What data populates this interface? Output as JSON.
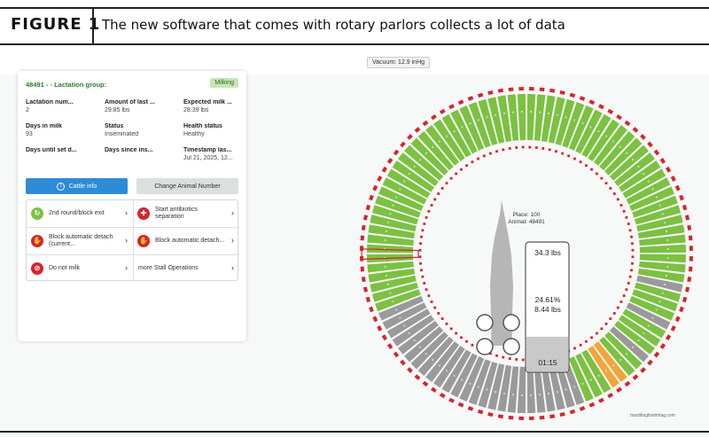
{
  "figure": {
    "number": "FIGURE 1",
    "caption": "The new software that comes with rotary parlors collects a lot of data"
  },
  "vacuum": "Vacuum: 12.9 inHg",
  "card": {
    "title": "48491 - - Lactation group:",
    "status_badge": "Milking",
    "fields": [
      {
        "label": "Lactation num...",
        "value": "2"
      },
      {
        "label": "Amount of last ...",
        "value": "29.85 lbs"
      },
      {
        "label": "Expected milk ...",
        "value": "28.39 lbs"
      },
      {
        "label": "Days in milk",
        "value": "93"
      },
      {
        "label": "Status",
        "value": "Inseminated"
      },
      {
        "label": "Health status",
        "value": "Healthy"
      },
      {
        "label": "Days until set d...",
        "value": ""
      },
      {
        "label": "Days since ins...",
        "value": ""
      },
      {
        "label": "Timestamp las...",
        "value": "Jul 21, 2025, 12..."
      }
    ],
    "cattle_info_label": "Cattle info",
    "change_animal_label": "Change Animal Number",
    "operations": [
      {
        "label": "2nd round/block exit",
        "icon": "refresh-icon",
        "color": "#7cc142"
      },
      {
        "label": "Start antibiotics separation",
        "icon": "antibiotics-icon",
        "color": "#d9232d"
      },
      {
        "label": "Block automatic detach (current...",
        "icon": "hand-block-icon",
        "color": "#d9232d"
      },
      {
        "label": "Block automatic detach...",
        "icon": "hand-block-icon",
        "color": "#d9232d"
      },
      {
        "label": "Do not milk",
        "icon": "no-milk-icon",
        "color": "#d9232d"
      },
      {
        "label": "more Stall Operations",
        "icon": "",
        "color": ""
      }
    ]
  },
  "wheel": {
    "place_label": "Place: 100",
    "animal_label": "Animal: 48491",
    "amount": "34.3 lbs",
    "percent": "24.61%",
    "current": "8.44 lbs",
    "timer": "01:15",
    "progress_fraction": 0.25,
    "stall_count": 100,
    "highlighted_stall": 100,
    "colors": {
      "green": "#7cc142",
      "gray": "#9a9a9a",
      "orange": "#f0a63a",
      "red_dash": "#d9232d",
      "cow": "#b6b6b6"
    }
  },
  "watermark": "mastitisgfsintmtag.com"
}
